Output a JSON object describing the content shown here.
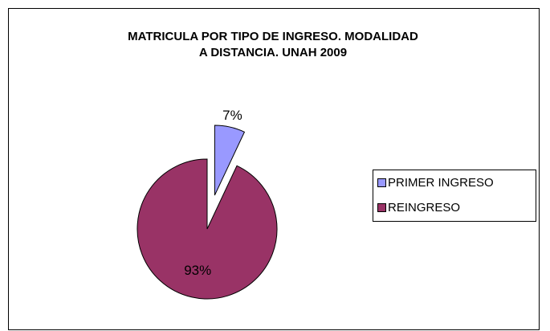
{
  "chart_data": {
    "type": "pie",
    "title": [
      "MATRICULA POR TIPO DE INGRESO. MODALIDAD",
      "A DISTANCIA. UNAH 2009"
    ],
    "categories": [
      "PRIMER INGRESO",
      "REINGRESO"
    ],
    "values": [
      7,
      93
    ],
    "value_labels": [
      "7%",
      "93%"
    ],
    "colors": [
      "#9999ff",
      "#993366"
    ],
    "legend": "right"
  }
}
